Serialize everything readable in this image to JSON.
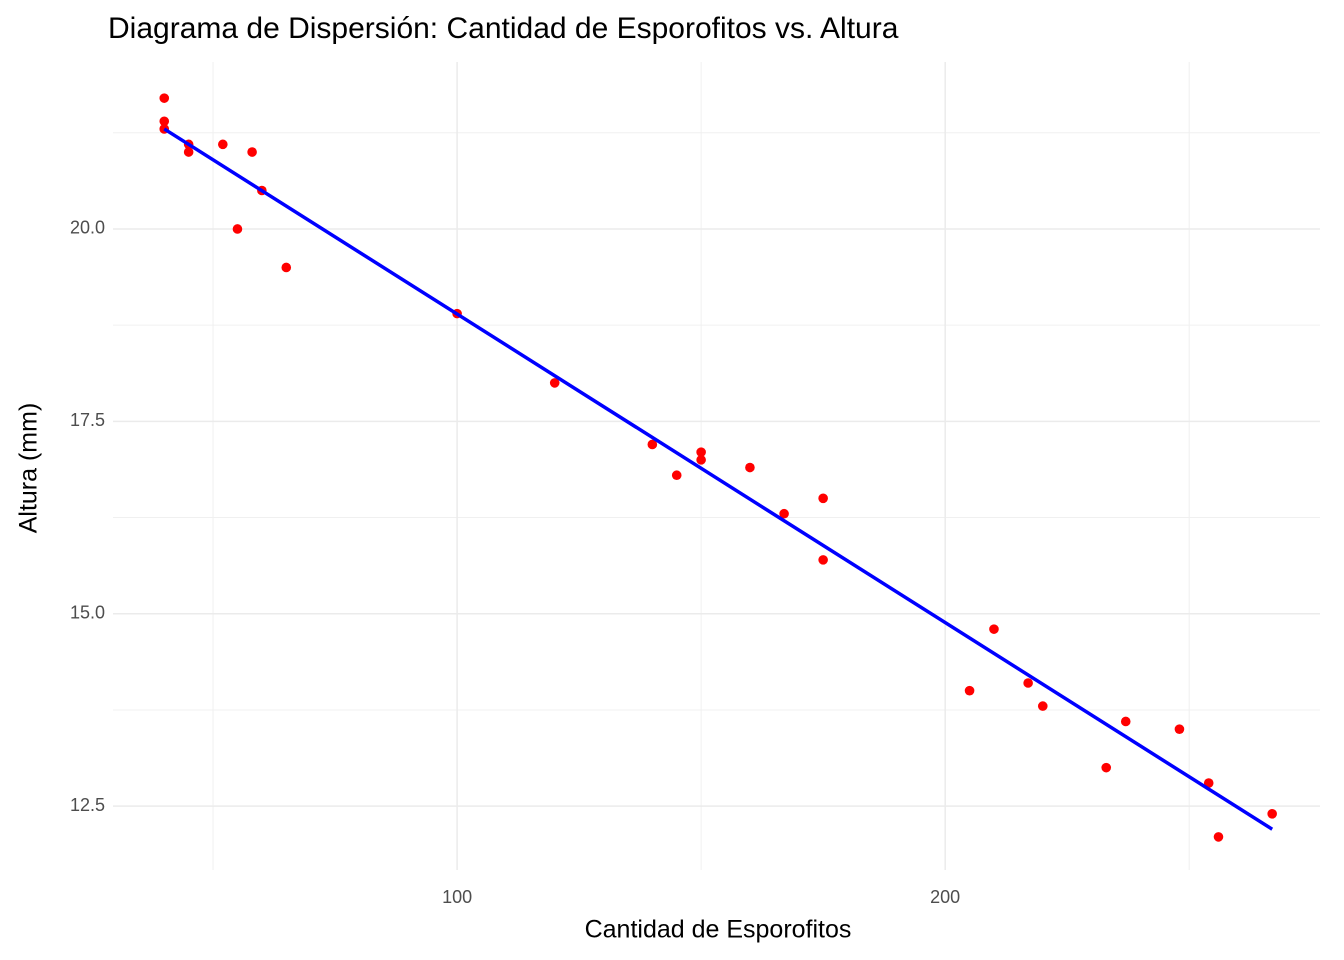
{
  "chart_data": {
    "type": "scatter",
    "title": "Diagrama de Dispersión: Cantidad de Esporofitos vs. Altura",
    "x_label": "Cantidad de Esporofitos",
    "y_label": "Altura (mm)",
    "points": {
      "color": "#ff0000",
      "x": [
        40,
        40,
        40,
        45,
        45,
        52,
        58,
        60,
        55,
        65,
        100,
        120,
        140,
        145,
        150,
        150,
        160,
        167,
        175,
        175,
        205,
        210,
        217,
        220,
        233,
        237,
        248,
        254,
        256,
        267
      ],
      "y": [
        21.7,
        21.4,
        21.3,
        21.1,
        21.0,
        21.1,
        21.0,
        20.5,
        20.0,
        19.5,
        18.9,
        18.0,
        17.2,
        16.8,
        17.1,
        17.0,
        16.9,
        16.3,
        16.5,
        15.7,
        14.0,
        14.8,
        14.1,
        13.8,
        13.0,
        13.6,
        13.5,
        12.8,
        12.1,
        12.4
      ]
    },
    "trend_line": {
      "color": "#0000ff",
      "x": [
        40,
        267
      ],
      "y": [
        21.3,
        12.2
      ]
    },
    "xlim": [
      29.5,
      276.8
    ],
    "ylim": [
      11.67,
      22.17
    ],
    "xticks": [
      100,
      200
    ],
    "yticks": [
      12.5,
      {
        "value": 15,
        "label": "15.0"
      },
      17.5,
      {
        "value": 20,
        "label": "20.0"
      }
    ],
    "x_minor_grid": [
      50,
      150,
      250
    ],
    "y_minor_grid": [
      13.75,
      16.25,
      18.75,
      21.25
    ],
    "grid": true
  }
}
